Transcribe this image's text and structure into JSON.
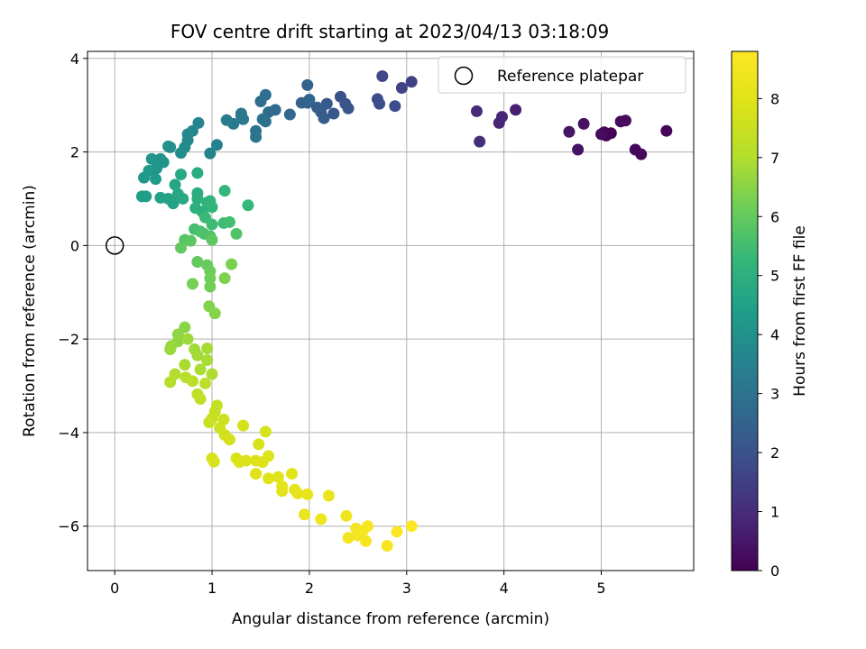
{
  "chart_data": {
    "type": "scatter",
    "title": "FOV centre drift starting at 2023/04/13 03:18:09",
    "xlabel": "Angular distance from reference (arcmin)",
    "ylabel": "Rotation from reference (arcmin)",
    "colorbar_label": "Hours from first FF file",
    "xlim": [
      -0.28,
      5.95
    ],
    "ylim": [
      -6.95,
      4.15
    ],
    "xticks": [
      0,
      1,
      2,
      3,
      4,
      5
    ],
    "yticks": [
      -6,
      -4,
      -2,
      0,
      2,
      4
    ],
    "colorbar_range": [
      0,
      8.8
    ],
    "colorbar_ticks": [
      0,
      1,
      2,
      3,
      4,
      5,
      6,
      7,
      8
    ],
    "colormap": "viridis",
    "grid": true,
    "legend": {
      "position": "top-right",
      "entries": [
        "Reference platepar"
      ]
    },
    "reference_point": {
      "x": 0,
      "y": 0
    },
    "points": [
      {
        "x": 5.05,
        "y": 2.35,
        "c": 0.05
      },
      {
        "x": 5.1,
        "y": 2.4,
        "c": 0.08
      },
      {
        "x": 5.03,
        "y": 2.42,
        "c": 0.1
      },
      {
        "x": 5.35,
        "y": 2.05,
        "c": 0.15
      },
      {
        "x": 5.41,
        "y": 1.95,
        "c": 0.18
      },
      {
        "x": 5.67,
        "y": 2.45,
        "c": 0.12
      },
      {
        "x": 5.2,
        "y": 2.65,
        "c": 0.2
      },
      {
        "x": 5.25,
        "y": 2.67,
        "c": 0.22
      },
      {
        "x": 5.0,
        "y": 2.38,
        "c": 0.25
      },
      {
        "x": 4.82,
        "y": 2.6,
        "c": 0.35
      },
      {
        "x": 4.76,
        "y": 2.05,
        "c": 0.4
      },
      {
        "x": 4.67,
        "y": 2.43,
        "c": 0.45
      },
      {
        "x": 4.12,
        "y": 2.9,
        "c": 0.7
      },
      {
        "x": 3.98,
        "y": 2.75,
        "c": 0.8
      },
      {
        "x": 3.95,
        "y": 2.62,
        "c": 0.85
      },
      {
        "x": 3.72,
        "y": 2.87,
        "c": 0.95
      },
      {
        "x": 3.75,
        "y": 2.22,
        "c": 1.0
      },
      {
        "x": 3.05,
        "y": 3.5,
        "c": 1.5
      },
      {
        "x": 2.95,
        "y": 3.37,
        "c": 1.6
      },
      {
        "x": 2.75,
        "y": 3.62,
        "c": 1.7
      },
      {
        "x": 2.88,
        "y": 2.98,
        "c": 1.75
      },
      {
        "x": 2.7,
        "y": 3.13,
        "c": 1.8
      },
      {
        "x": 2.72,
        "y": 3.03,
        "c": 1.85
      },
      {
        "x": 2.32,
        "y": 3.18,
        "c": 2.0
      },
      {
        "x": 2.37,
        "y": 3.03,
        "c": 2.05
      },
      {
        "x": 2.4,
        "y": 2.93,
        "c": 2.1
      },
      {
        "x": 2.25,
        "y": 2.82,
        "c": 2.15
      },
      {
        "x": 2.18,
        "y": 3.03,
        "c": 2.2
      },
      {
        "x": 2.12,
        "y": 2.85,
        "c": 2.25
      },
      {
        "x": 2.15,
        "y": 2.72,
        "c": 2.3
      },
      {
        "x": 2.08,
        "y": 2.95,
        "c": 2.35
      },
      {
        "x": 1.98,
        "y": 3.05,
        "c": 2.4
      },
      {
        "x": 1.92,
        "y": 3.05,
        "c": 2.45
      },
      {
        "x": 1.98,
        "y": 3.43,
        "c": 2.5
      },
      {
        "x": 2.0,
        "y": 3.12,
        "c": 2.55
      },
      {
        "x": 1.8,
        "y": 2.8,
        "c": 2.6
      },
      {
        "x": 1.65,
        "y": 2.9,
        "c": 2.7
      },
      {
        "x": 1.58,
        "y": 2.85,
        "c": 2.75
      },
      {
        "x": 1.5,
        "y": 3.08,
        "c": 2.8
      },
      {
        "x": 1.55,
        "y": 3.22,
        "c": 2.85
      },
      {
        "x": 1.52,
        "y": 2.7,
        "c": 2.9
      },
      {
        "x": 1.55,
        "y": 2.65,
        "c": 2.95
      },
      {
        "x": 1.45,
        "y": 2.45,
        "c": 3.0
      },
      {
        "x": 1.45,
        "y": 2.32,
        "c": 3.05
      },
      {
        "x": 1.3,
        "y": 2.78,
        "c": 3.1
      },
      {
        "x": 1.3,
        "y": 2.82,
        "c": 3.15
      },
      {
        "x": 1.32,
        "y": 2.7,
        "c": 3.2
      },
      {
        "x": 1.22,
        "y": 2.6,
        "c": 3.25
      },
      {
        "x": 1.15,
        "y": 2.68,
        "c": 3.3
      },
      {
        "x": 1.05,
        "y": 2.15,
        "c": 3.5
      },
      {
        "x": 0.98,
        "y": 1.97,
        "c": 3.55
      },
      {
        "x": 0.86,
        "y": 2.62,
        "c": 3.6
      },
      {
        "x": 0.8,
        "y": 2.45,
        "c": 3.65
      },
      {
        "x": 0.75,
        "y": 2.38,
        "c": 3.7
      },
      {
        "x": 0.75,
        "y": 2.25,
        "c": 3.75
      },
      {
        "x": 0.72,
        "y": 2.1,
        "c": 3.8
      },
      {
        "x": 0.68,
        "y": 1.98,
        "c": 3.85
      },
      {
        "x": 0.57,
        "y": 2.1,
        "c": 3.9
      },
      {
        "x": 0.55,
        "y": 2.12,
        "c": 3.95
      },
      {
        "x": 0.47,
        "y": 1.85,
        "c": 4.0
      },
      {
        "x": 0.5,
        "y": 1.78,
        "c": 4.05
      },
      {
        "x": 0.43,
        "y": 1.65,
        "c": 4.1
      },
      {
        "x": 0.38,
        "y": 1.85,
        "c": 4.15
      },
      {
        "x": 0.35,
        "y": 1.6,
        "c": 4.2
      },
      {
        "x": 0.3,
        "y": 1.45,
        "c": 4.25
      },
      {
        "x": 0.42,
        "y": 1.42,
        "c": 4.3
      },
      {
        "x": 0.32,
        "y": 1.05,
        "c": 4.4
      },
      {
        "x": 0.28,
        "y": 1.05,
        "c": 4.45
      },
      {
        "x": 0.47,
        "y": 1.02,
        "c": 4.5
      },
      {
        "x": 0.55,
        "y": 1.0,
        "c": 4.55
      },
      {
        "x": 0.6,
        "y": 0.9,
        "c": 4.6
      },
      {
        "x": 0.62,
        "y": 1.3,
        "c": 4.65
      },
      {
        "x": 0.65,
        "y": 1.1,
        "c": 4.7
      },
      {
        "x": 0.7,
        "y": 1.0,
        "c": 4.75
      },
      {
        "x": 0.68,
        "y": 1.52,
        "c": 4.8
      },
      {
        "x": 0.85,
        "y": 1.55,
        "c": 4.85
      },
      {
        "x": 0.85,
        "y": 1.12,
        "c": 4.9
      },
      {
        "x": 0.85,
        "y": 1.0,
        "c": 4.95
      },
      {
        "x": 0.83,
        "y": 0.8,
        "c": 5.0
      },
      {
        "x": 0.9,
        "y": 0.72,
        "c": 5.05
      },
      {
        "x": 0.95,
        "y": 0.92,
        "c": 5.1
      },
      {
        "x": 0.98,
        "y": 0.95,
        "c": 5.15
      },
      {
        "x": 1.0,
        "y": 0.82,
        "c": 5.2
      },
      {
        "x": 1.13,
        "y": 1.17,
        "c": 5.25
      },
      {
        "x": 1.37,
        "y": 0.86,
        "c": 5.3
      },
      {
        "x": 0.93,
        "y": 0.6,
        "c": 5.35
      },
      {
        "x": 1.0,
        "y": 0.45,
        "c": 5.4
      },
      {
        "x": 1.12,
        "y": 0.48,
        "c": 5.45
      },
      {
        "x": 1.18,
        "y": 0.5,
        "c": 5.5
      },
      {
        "x": 0.82,
        "y": 0.35,
        "c": 5.55
      },
      {
        "x": 0.88,
        "y": 0.3,
        "c": 5.6
      },
      {
        "x": 0.92,
        "y": 0.25,
        "c": 5.65
      },
      {
        "x": 0.98,
        "y": 0.2,
        "c": 5.7
      },
      {
        "x": 1.25,
        "y": 0.25,
        "c": 5.75
      },
      {
        "x": 0.72,
        "y": 0.12,
        "c": 5.8
      },
      {
        "x": 0.78,
        "y": 0.1,
        "c": 5.85
      },
      {
        "x": 1.0,
        "y": 0.12,
        "c": 5.9
      },
      {
        "x": 0.68,
        "y": -0.05,
        "c": 5.95
      },
      {
        "x": 0.85,
        "y": -0.35,
        "c": 6.0
      },
      {
        "x": 0.95,
        "y": -0.42,
        "c": 6.05
      },
      {
        "x": 0.98,
        "y": -0.55,
        "c": 6.1
      },
      {
        "x": 0.98,
        "y": -0.7,
        "c": 6.15
      },
      {
        "x": 0.98,
        "y": -0.88,
        "c": 6.2
      },
      {
        "x": 0.8,
        "y": -0.82,
        "c": 6.25
      },
      {
        "x": 1.2,
        "y": -0.4,
        "c": 6.3
      },
      {
        "x": 1.13,
        "y": -0.7,
        "c": 6.35
      },
      {
        "x": 0.97,
        "y": -1.3,
        "c": 6.4
      },
      {
        "x": 1.03,
        "y": -1.45,
        "c": 6.45
      },
      {
        "x": 0.72,
        "y": -1.75,
        "c": 6.5
      },
      {
        "x": 0.65,
        "y": -1.9,
        "c": 6.55
      },
      {
        "x": 0.65,
        "y": -2.05,
        "c": 6.6
      },
      {
        "x": 0.58,
        "y": -2.15,
        "c": 6.65
      },
      {
        "x": 0.57,
        "y": -2.22,
        "c": 6.7
      },
      {
        "x": 0.75,
        "y": -2.0,
        "c": 6.75
      },
      {
        "x": 0.82,
        "y": -2.22,
        "c": 6.8
      },
      {
        "x": 0.85,
        "y": -2.35,
        "c": 6.82
      },
      {
        "x": 0.95,
        "y": -2.2,
        "c": 6.85
      },
      {
        "x": 0.95,
        "y": -2.45,
        "c": 6.88
      },
      {
        "x": 0.72,
        "y": -2.55,
        "c": 6.9
      },
      {
        "x": 0.88,
        "y": -2.65,
        "c": 6.92
      },
      {
        "x": 1.0,
        "y": -2.75,
        "c": 6.95
      },
      {
        "x": 0.62,
        "y": -2.75,
        "c": 7.0
      },
      {
        "x": 0.57,
        "y": -2.92,
        "c": 7.05
      },
      {
        "x": 0.73,
        "y": -2.82,
        "c": 7.1
      },
      {
        "x": 0.8,
        "y": -2.9,
        "c": 7.15
      },
      {
        "x": 0.93,
        "y": -2.95,
        "c": 7.2
      },
      {
        "x": 0.85,
        "y": -3.18,
        "c": 7.25
      },
      {
        "x": 0.88,
        "y": -3.28,
        "c": 7.3
      },
      {
        "x": 1.05,
        "y": -3.42,
        "c": 7.35
      },
      {
        "x": 1.03,
        "y": -3.55,
        "c": 7.4
      },
      {
        "x": 1.0,
        "y": -3.7,
        "c": 7.45
      },
      {
        "x": 0.97,
        "y": -3.78,
        "c": 7.5
      },
      {
        "x": 1.12,
        "y": -3.72,
        "c": 7.55
      },
      {
        "x": 1.08,
        "y": -3.9,
        "c": 7.6
      },
      {
        "x": 1.13,
        "y": -4.05,
        "c": 7.65
      },
      {
        "x": 1.18,
        "y": -4.15,
        "c": 7.7
      },
      {
        "x": 1.32,
        "y": -3.85,
        "c": 7.72
      },
      {
        "x": 1.55,
        "y": -3.98,
        "c": 7.75
      },
      {
        "x": 1.48,
        "y": -4.25,
        "c": 7.78
      },
      {
        "x": 1.0,
        "y": -4.55,
        "c": 7.8
      },
      {
        "x": 1.02,
        "y": -4.62,
        "c": 7.82
      },
      {
        "x": 1.25,
        "y": -4.55,
        "c": 7.85
      },
      {
        "x": 1.28,
        "y": -4.63,
        "c": 7.87
      },
      {
        "x": 1.35,
        "y": -4.6,
        "c": 7.9
      },
      {
        "x": 1.45,
        "y": -4.6,
        "c": 7.92
      },
      {
        "x": 1.52,
        "y": -4.63,
        "c": 7.95
      },
      {
        "x": 1.58,
        "y": -4.5,
        "c": 7.97
      },
      {
        "x": 1.45,
        "y": -4.88,
        "c": 8.0
      },
      {
        "x": 1.58,
        "y": -4.98,
        "c": 8.02
      },
      {
        "x": 1.68,
        "y": -4.95,
        "c": 8.05
      },
      {
        "x": 1.82,
        "y": -4.88,
        "c": 8.07
      },
      {
        "x": 1.72,
        "y": -5.15,
        "c": 8.1
      },
      {
        "x": 1.72,
        "y": -5.25,
        "c": 8.12
      },
      {
        "x": 1.85,
        "y": -5.22,
        "c": 8.15
      },
      {
        "x": 1.88,
        "y": -5.3,
        "c": 8.17
      },
      {
        "x": 1.98,
        "y": -5.32,
        "c": 8.2
      },
      {
        "x": 2.2,
        "y": -5.35,
        "c": 8.25
      },
      {
        "x": 1.95,
        "y": -5.75,
        "c": 8.3
      },
      {
        "x": 2.12,
        "y": -5.85,
        "c": 8.35
      },
      {
        "x": 2.38,
        "y": -5.78,
        "c": 8.4
      },
      {
        "x": 2.48,
        "y": -6.05,
        "c": 8.45
      },
      {
        "x": 2.5,
        "y": -6.2,
        "c": 8.5
      },
      {
        "x": 2.4,
        "y": -6.25,
        "c": 8.52
      },
      {
        "x": 2.55,
        "y": -6.1,
        "c": 8.55
      },
      {
        "x": 2.6,
        "y": -6.0,
        "c": 8.6
      },
      {
        "x": 2.58,
        "y": -6.32,
        "c": 8.62
      },
      {
        "x": 2.8,
        "y": -6.42,
        "c": 8.65
      },
      {
        "x": 2.9,
        "y": -6.12,
        "c": 8.7
      },
      {
        "x": 3.05,
        "y": -6.0,
        "c": 8.75
      }
    ]
  }
}
